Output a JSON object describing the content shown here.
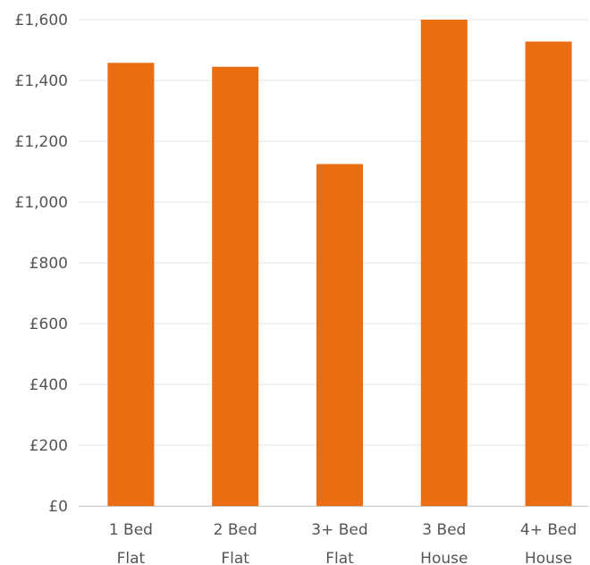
{
  "chart_data": {
    "type": "bar",
    "title": "",
    "xlabel": "",
    "ylabel": "",
    "categories": [
      [
        "1 Bed",
        "Flat"
      ],
      [
        "2 Bed",
        "Flat"
      ],
      [
        "3+ Bed",
        "Flat"
      ],
      [
        "3 Bed",
        "House"
      ],
      [
        "4+ Bed",
        "House"
      ]
    ],
    "values": [
      1458,
      1445,
      1125,
      1600,
      1528
    ],
    "ylim": [
      0,
      1600
    ],
    "yticks": [
      0,
      200,
      400,
      600,
      800,
      1000,
      1200,
      1400,
      1600
    ],
    "ytick_labels": [
      "£0",
      "£200",
      "£400",
      "£600",
      "£800",
      "£1,000",
      "£1,200",
      "£1,400",
      "£1,600"
    ],
    "grid": true,
    "legend": "none",
    "bar_color": "#ec6c12"
  }
}
